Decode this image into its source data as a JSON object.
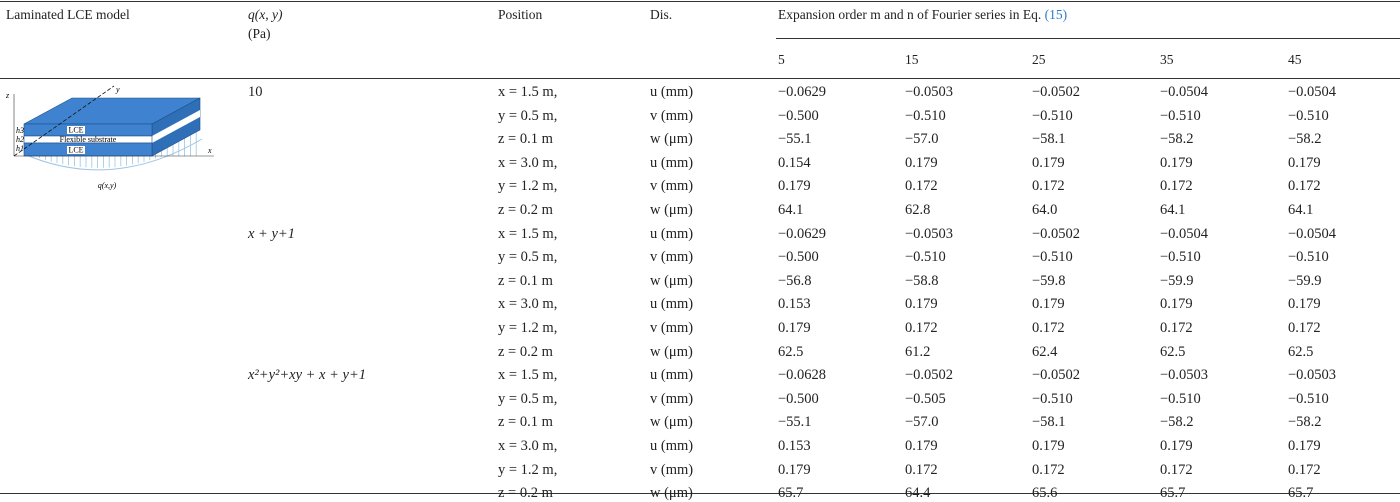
{
  "table": {
    "header": {
      "model": "Laminated LCE model",
      "load": "q(x, y)",
      "load_unit": "(Pa)",
      "position": "Position",
      "dis": "Dis.",
      "expansion": "Expansion order m and n of Fourier series in Eq.",
      "eq_ref": "(15)",
      "orders": [
        "5",
        "15",
        "25",
        "35",
        "45"
      ]
    },
    "groups": [
      {
        "load": "10",
        "rows": [
          {
            "position": "x = 1.5 m,",
            "dis": "u (mm)",
            "values": [
              "−0.0629",
              "−0.0503",
              "−0.0502",
              "−0.0504",
              "−0.0504"
            ]
          },
          {
            "position": "y = 0.5 m,",
            "dis": "v (mm)",
            "values": [
              "−0.500",
              "−0.510",
              "−0.510",
              "−0.510",
              "−0.510"
            ]
          },
          {
            "position": "z = 0.1 m",
            "dis": "w (μm)",
            "values": [
              "−55.1",
              "−57.0",
              "−58.1",
              "−58.2",
              "−58.2"
            ]
          },
          {
            "position": "x = 3.0 m,",
            "dis": "u (mm)",
            "values": [
              "0.154",
              "0.179",
              "0.179",
              "0.179",
              "0.179"
            ]
          },
          {
            "position": "y = 1.2 m,",
            "dis": "v (mm)",
            "values": [
              "0.179",
              "0.172",
              "0.172",
              "0.172",
              "0.172"
            ]
          },
          {
            "position": "z = 0.2 m",
            "dis": "w (μm)",
            "values": [
              "64.1",
              "62.8",
              "64.0",
              "64.1",
              "64.1"
            ]
          }
        ]
      },
      {
        "load": "x + y+1",
        "rows": [
          {
            "position": "x = 1.5 m,",
            "dis": "u (mm)",
            "values": [
              "−0.0629",
              "−0.0503",
              "−0.0502",
              "−0.0504",
              "−0.0504"
            ]
          },
          {
            "position": "y = 0.5 m,",
            "dis": "v (mm)",
            "values": [
              "−0.500",
              "−0.510",
              "−0.510",
              "−0.510",
              "−0.510"
            ]
          },
          {
            "position": "z = 0.1 m",
            "dis": "w (μm)",
            "values": [
              "−56.8",
              "−58.8",
              "−59.8",
              "−59.9",
              "−59.9"
            ]
          },
          {
            "position": "x = 3.0 m,",
            "dis": "u (mm)",
            "values": [
              "0.153",
              "0.179",
              "0.179",
              "0.179",
              "0.179"
            ]
          },
          {
            "position": "y = 1.2 m,",
            "dis": "v (mm)",
            "values": [
              "0.179",
              "0.172",
              "0.172",
              "0.172",
              "0.172"
            ]
          },
          {
            "position": "z = 0.2 m",
            "dis": "w (μm)",
            "values": [
              "62.5",
              "61.2",
              "62.4",
              "62.5",
              "62.5"
            ]
          }
        ]
      },
      {
        "load": "x²+y²+xy + x + y+1",
        "rows": [
          {
            "position": "x = 1.5 m,",
            "dis": "u (mm)",
            "values": [
              "−0.0628",
              "−0.0502",
              "−0.0502",
              "−0.0503",
              "−0.0503"
            ]
          },
          {
            "position": "y = 0.5 m,",
            "dis": "v (mm)",
            "values": [
              "−0.500",
              "−0.505",
              "−0.510",
              "−0.510",
              "−0.510"
            ]
          },
          {
            "position": "z = 0.1 m",
            "dis": "w (μm)",
            "values": [
              "−55.1",
              "−57.0",
              "−58.1",
              "−58.2",
              "−58.2"
            ]
          },
          {
            "position": "x = 3.0 m,",
            "dis": "u (mm)",
            "values": [
              "0.153",
              "0.179",
              "0.179",
              "0.179",
              "0.179"
            ]
          },
          {
            "position": "y = 1.2 m,",
            "dis": "v (mm)",
            "values": [
              "0.179",
              "0.172",
              "0.172",
              "0.172",
              "0.172"
            ]
          },
          {
            "position": "z = 0.2 m",
            "dis": "w (μm)",
            "values": [
              "65.7",
              "64.4",
              "65.6",
              "65.7",
              "65.7"
            ]
          }
        ]
      }
    ]
  },
  "figure": {
    "labels": {
      "top_layer": "LCE",
      "substrate": "Flexible substrate",
      "bottom_layer": "LCE",
      "h3": "h3",
      "h2": "h2",
      "h1": "h1",
      "x": "x",
      "y": "y",
      "z": "z",
      "load": "q(x,y)"
    }
  }
}
